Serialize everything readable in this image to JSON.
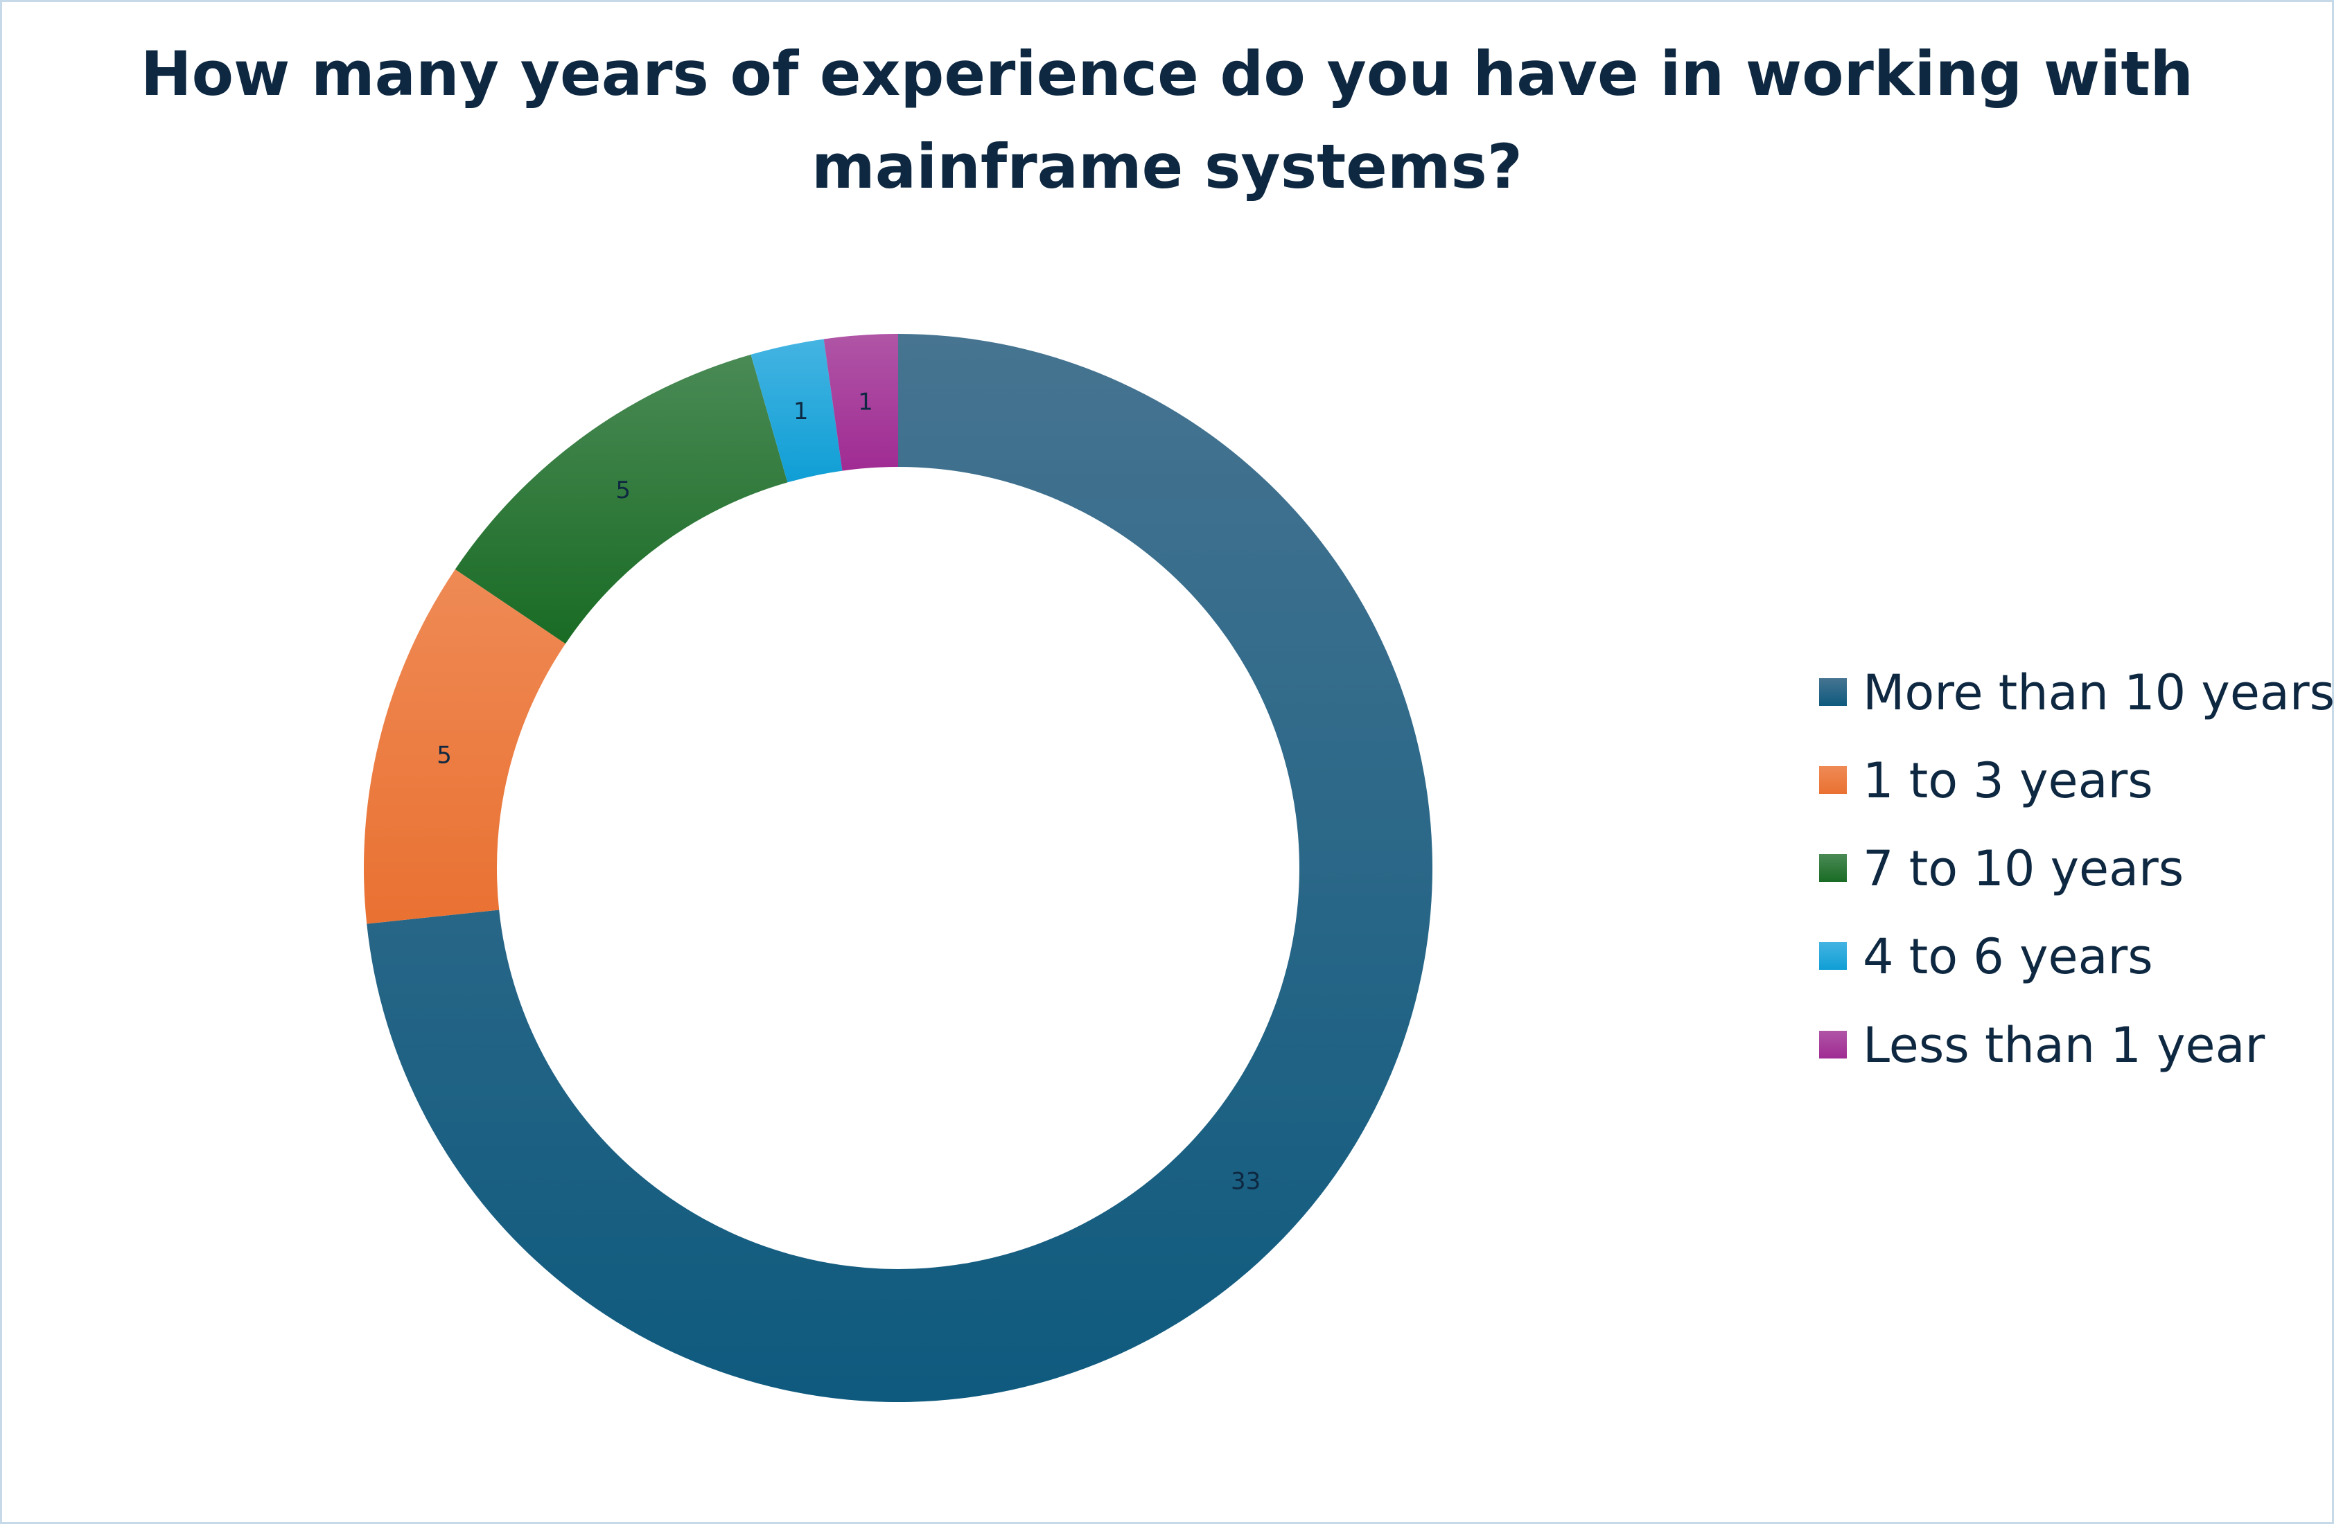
{
  "chart_data": {
    "type": "pie",
    "variant": "donut",
    "title": "How many years of experience do you have in working with mainframe systems?",
    "title_lines": [
      "How many years of experience do you have in working with",
      "mainframe systems?"
    ],
    "categories": [
      "More than 10 years",
      "1 to 3 years",
      "7 to 10 years",
      "4 to 6 years",
      "Less than 1 year"
    ],
    "values": [
      33,
      5,
      5,
      1,
      1
    ],
    "data_labels": [
      "33",
      "5",
      "5",
      "1",
      "1"
    ],
    "colors": [
      "#0e5a7e",
      "#e97132",
      "#196b24",
      "#0f9ed5",
      "#a02b93"
    ],
    "light_colors": [
      "#467491",
      "#ef8a55",
      "#4a8a55",
      "#44b4e2",
      "#b055a6"
    ],
    "legend_position": "right",
    "text_color": "#0e2841"
  }
}
